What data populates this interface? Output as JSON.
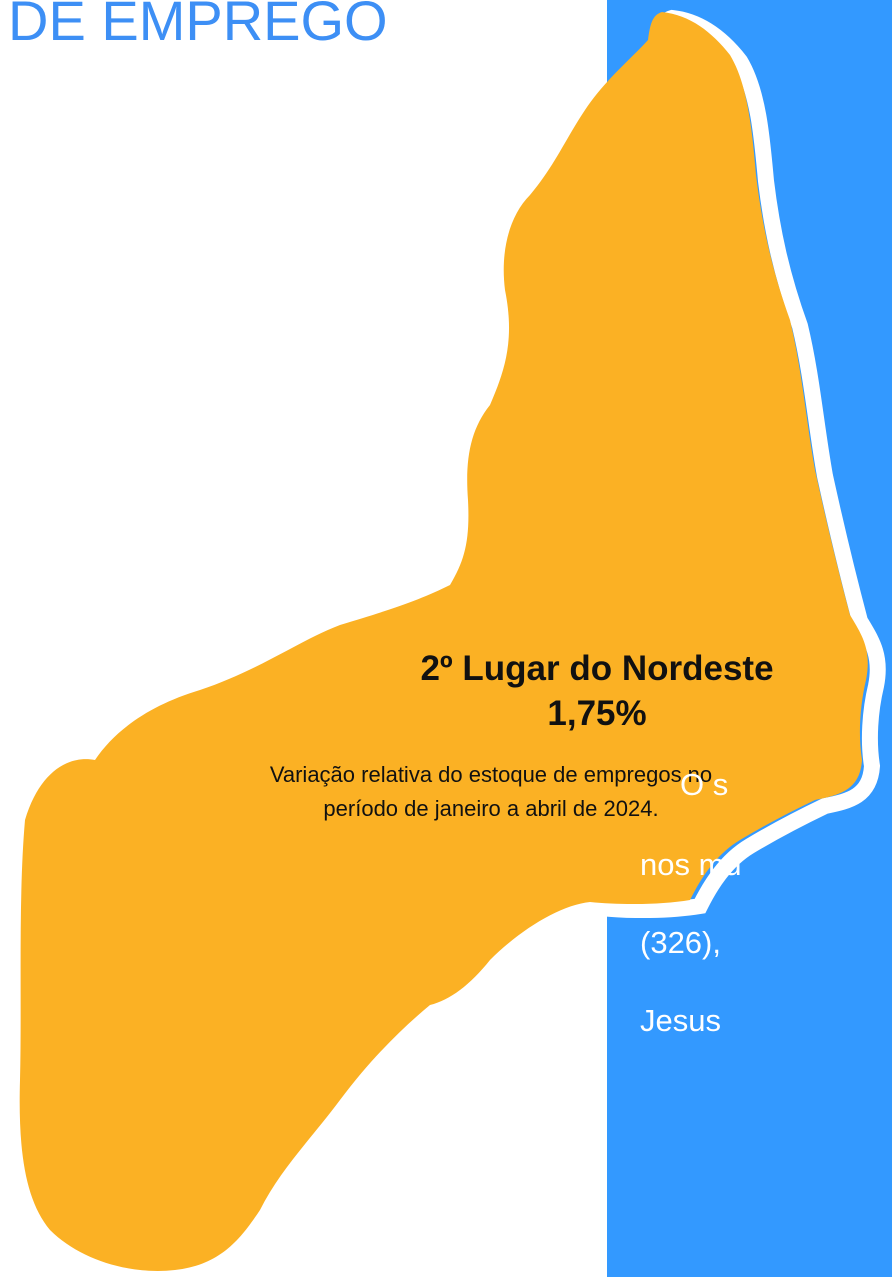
{
  "header": {
    "title": "DE EMPREGO"
  },
  "highlight": {
    "rank": "2º Lugar do Nordeste",
    "value": "1,75%",
    "caption": [
      "Variação relativa do estoque de empregos no",
      "período de janeiro a abril de 2024."
    ]
  },
  "panel": {
    "lines": [
      "O s",
      "nos mu",
      "(326),",
      "Jesus"
    ]
  }
}
